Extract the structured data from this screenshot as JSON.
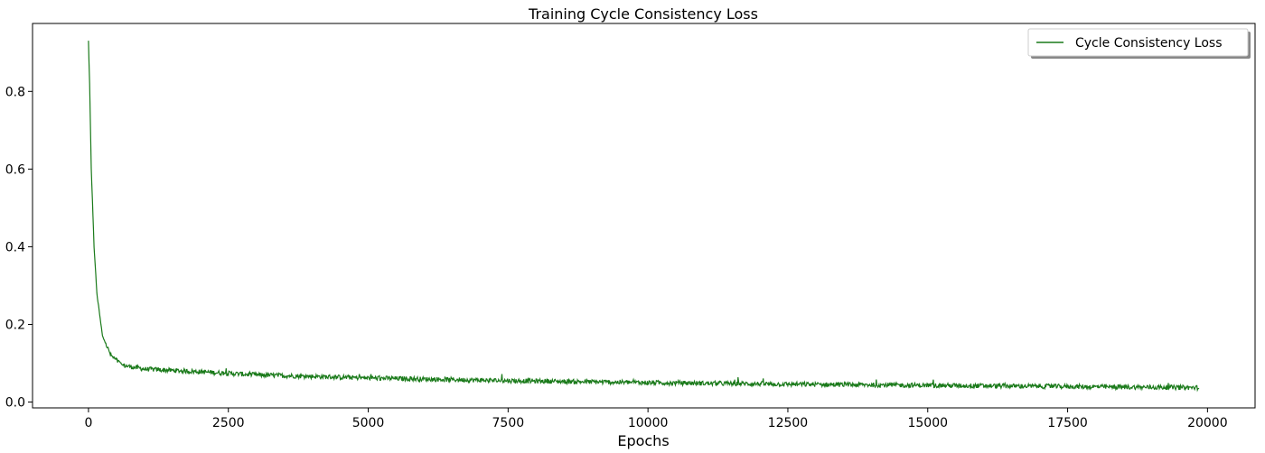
{
  "chart_data": {
    "type": "line",
    "title": "Training Cycle Consistency Loss",
    "xlabel": "Epochs",
    "ylabel": "",
    "xlim": [
      -1000,
      20850
    ],
    "ylim": [
      -0.015,
      0.975
    ],
    "xticks": [
      0,
      2500,
      5000,
      7500,
      10000,
      12500,
      15000,
      17500,
      20000
    ],
    "yticks": [
      0.0,
      0.2,
      0.4,
      0.6,
      0.8
    ],
    "xtick_labels": [
      "0",
      "2500",
      "5000",
      "7500",
      "10000",
      "12500",
      "15000",
      "17500",
      "20000"
    ],
    "ytick_labels": [
      "0.0",
      "0.2",
      "0.4",
      "0.6",
      "0.8"
    ],
    "grid": false,
    "legend": {
      "position": "top-right"
    },
    "series": [
      {
        "name": "Cycle Consistency Loss",
        "color": "#1a7a1a",
        "x_range": [
          0,
          19850
        ],
        "keypoints": [
          [
            0,
            0.93
          ],
          [
            20,
            0.82
          ],
          [
            50,
            0.6
          ],
          [
            100,
            0.4
          ],
          [
            150,
            0.28
          ],
          [
            250,
            0.17
          ],
          [
            400,
            0.12
          ],
          [
            600,
            0.095
          ],
          [
            1000,
            0.085
          ],
          [
            2000,
            0.078
          ],
          [
            3000,
            0.07
          ],
          [
            5000,
            0.062
          ],
          [
            7500,
            0.055
          ],
          [
            10000,
            0.05
          ],
          [
            12500,
            0.046
          ],
          [
            15000,
            0.043
          ],
          [
            17500,
            0.04
          ],
          [
            19850,
            0.037
          ]
        ],
        "noise_amplitude": 0.012
      }
    ]
  }
}
